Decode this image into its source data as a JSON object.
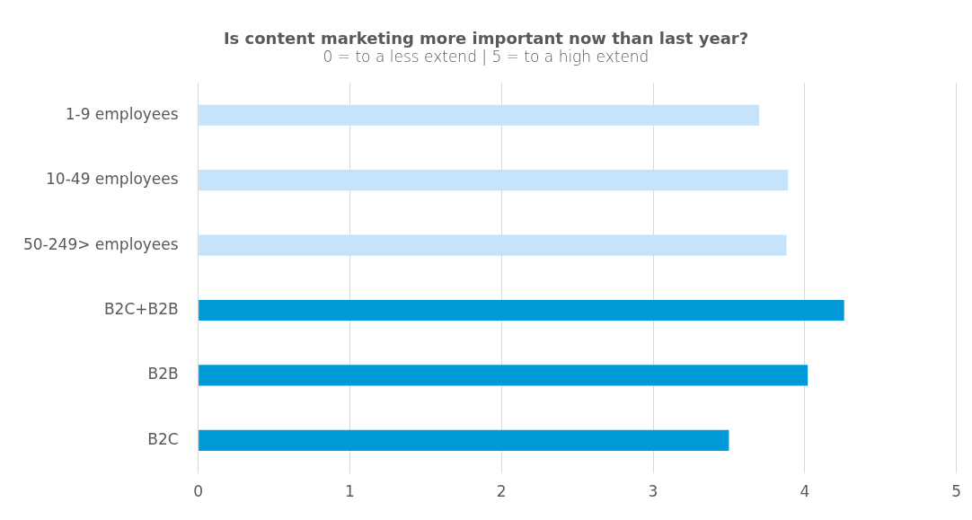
{
  "chart_data": {
    "type": "bar",
    "orientation": "horizontal",
    "title": "Is content marketing more important now than last year?",
    "subtitle": "0 = to a less extend | 5 = to a high extend",
    "categories": [
      "1-9 employees",
      "10-49 employees",
      "50-249> employees",
      "B2C+B2B",
      "B2B",
      "B2C"
    ],
    "values": [
      3.7,
      3.89,
      3.88,
      4.26,
      4.02,
      3.5
    ],
    "colors": [
      "#c5e3fb",
      "#c5e3fb",
      "#c5e3fb",
      "#009ad8",
      "#009ad8",
      "#009ad8"
    ],
    "xlim": [
      0,
      5
    ],
    "xticks": [
      0,
      1,
      2,
      3,
      4,
      5
    ],
    "grid": "x"
  }
}
